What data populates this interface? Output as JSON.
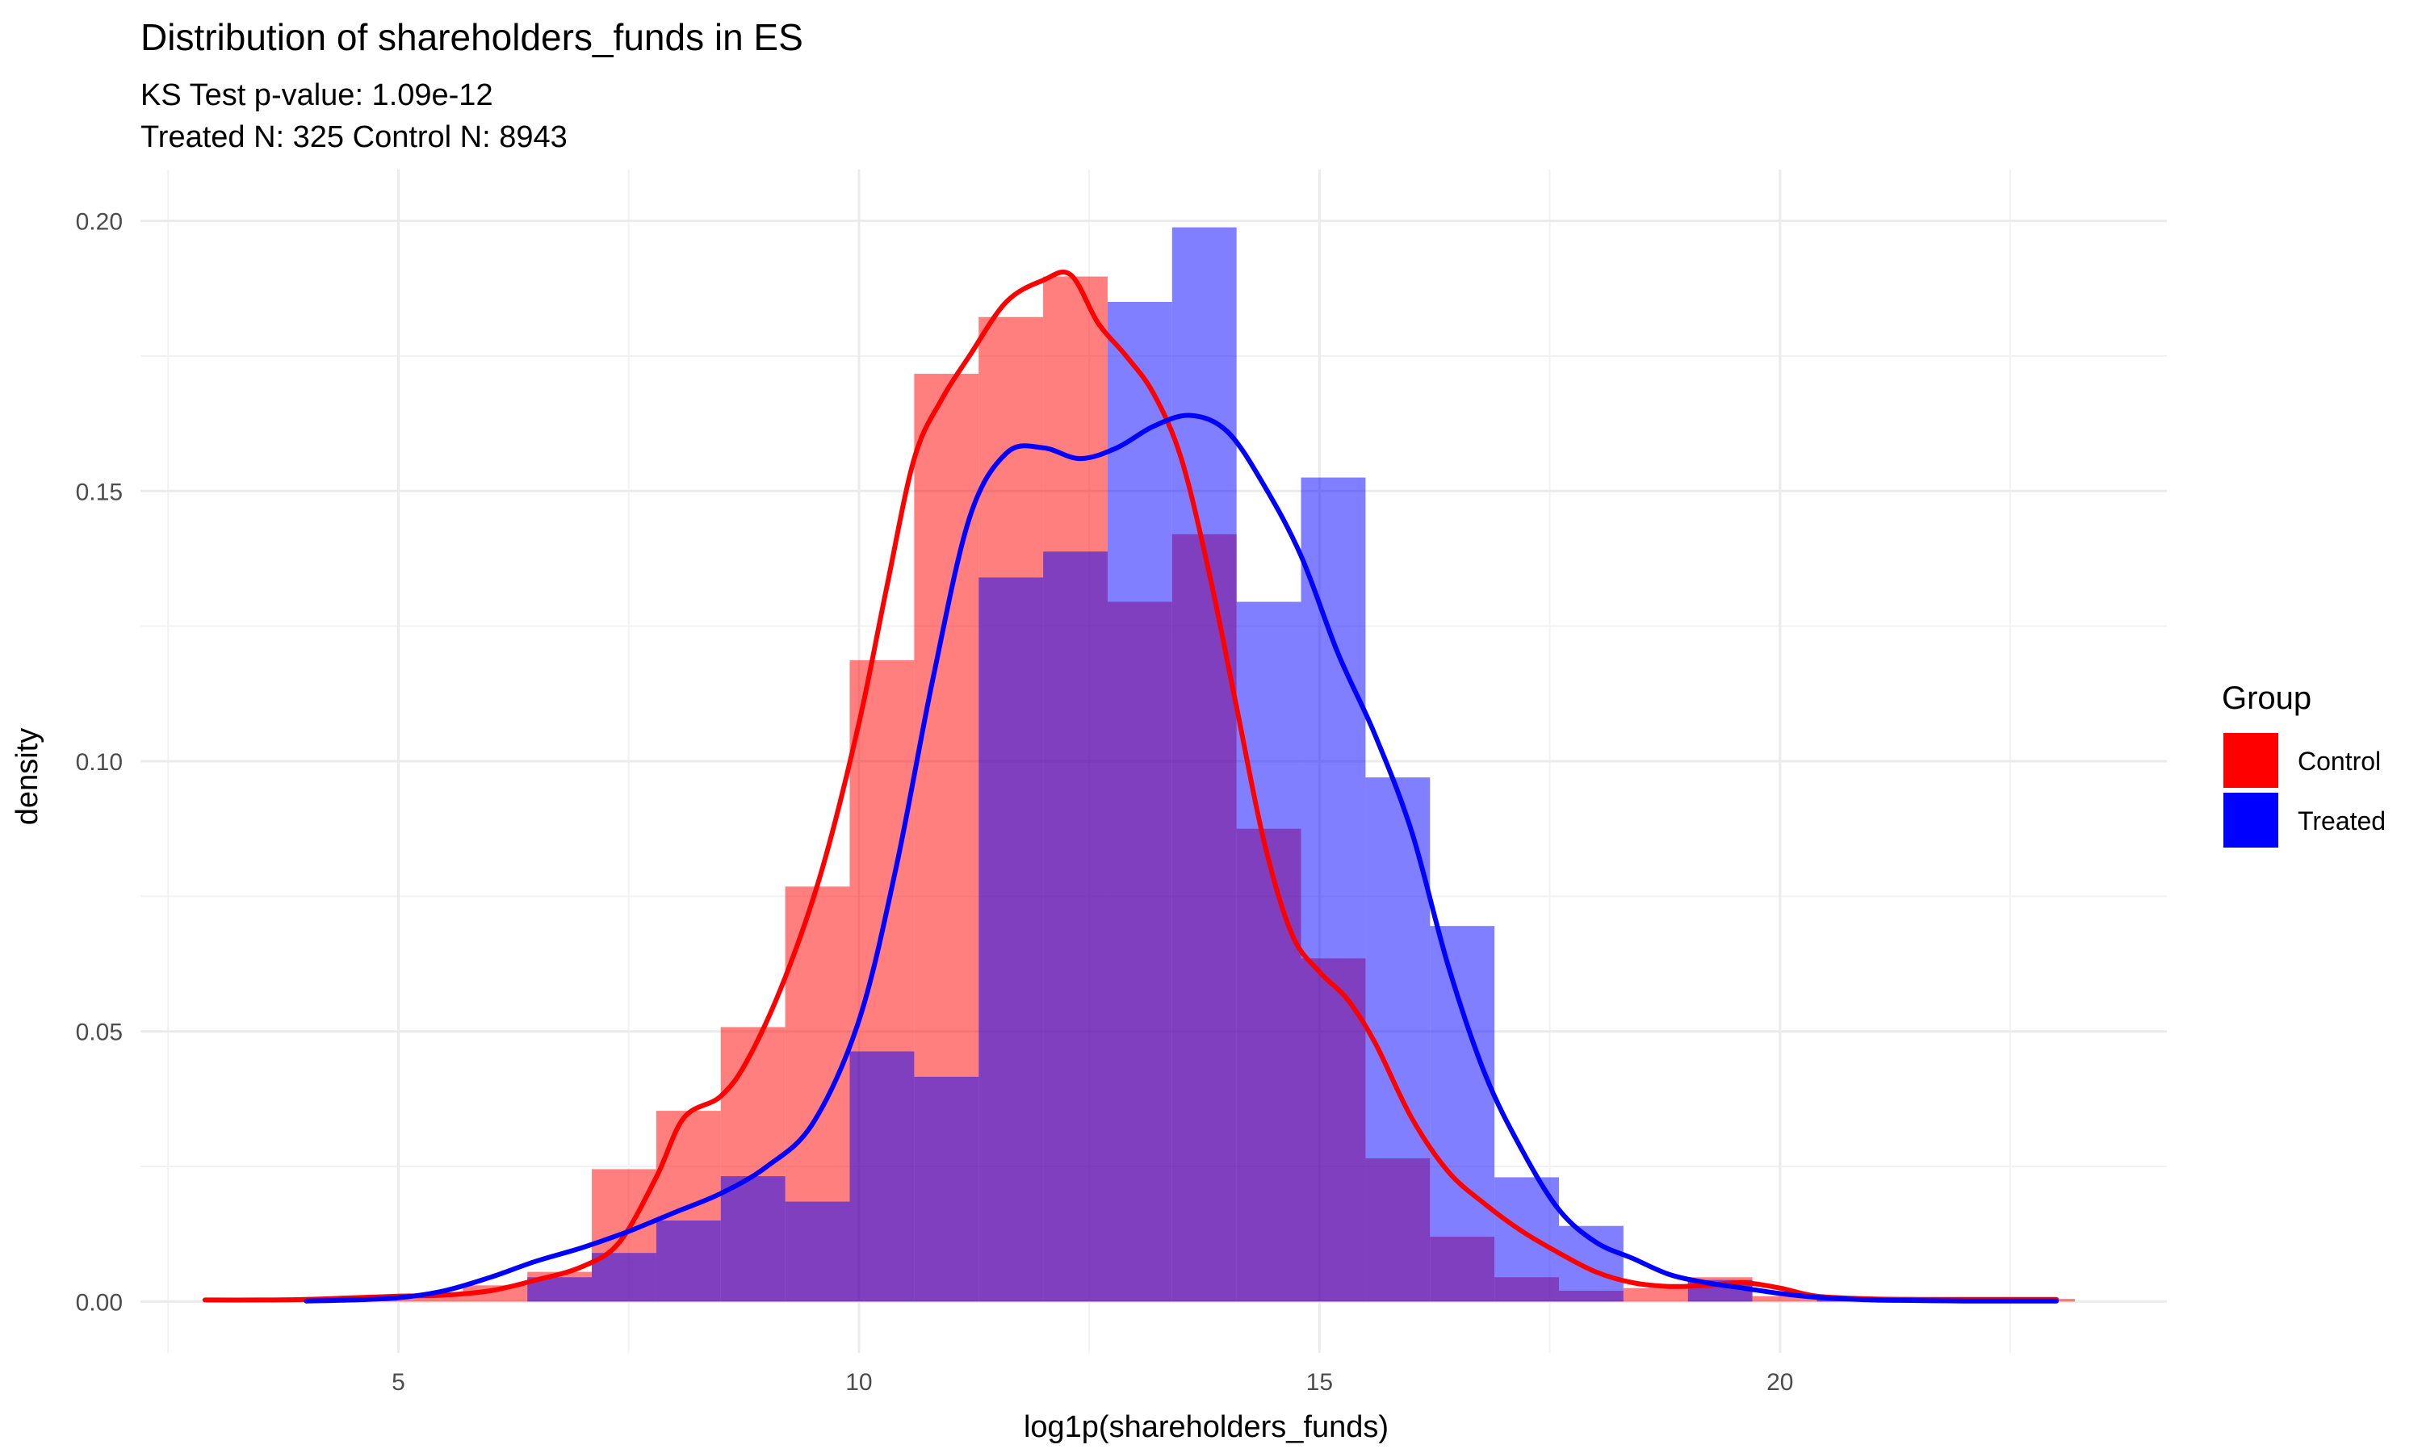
{
  "title": "Distribution of shareholders_funds in ES",
  "subtitle_line1": "KS Test p-value: 1.09e-12",
  "subtitle_line2": "Treated N: 325 Control N: 8943",
  "chart_data": {
    "type": "bar",
    "title": "Distribution of shareholders_funds in ES",
    "xlabel": "log1p(shareholders_funds)",
    "ylabel": "density",
    "xlim": [
      2.2,
      24.2
    ],
    "ylim": [
      -0.0095,
      0.2095
    ],
    "x_ticks": [
      5,
      10,
      15,
      20
    ],
    "y_ticks": [
      0.0,
      0.05,
      0.1,
      0.15,
      0.2
    ],
    "x_tick_labels": [
      "5",
      "10",
      "15",
      "20"
    ],
    "y_tick_labels": [
      "0.00",
      "0.05",
      "0.10",
      "0.15",
      "0.20"
    ],
    "grid": true,
    "legend": {
      "title": "Group",
      "position": "right"
    },
    "bins": [
      2.9,
      3.6,
      4.3,
      5.0,
      5.7,
      6.4,
      7.1,
      7.8,
      8.5,
      9.2,
      9.9,
      10.6,
      11.3,
      12.0,
      12.7,
      13.4,
      14.1,
      14.8,
      15.5,
      16.2,
      16.9,
      17.6,
      18.3,
      19.0,
      19.7,
      20.4,
      21.1,
      21.8,
      22.5,
      23.2
    ],
    "series": [
      {
        "name": "Control",
        "color": "#ff0000",
        "histogram": [
          0.0005,
          0.0005,
          0.0008,
          0.0013,
          0.003,
          0.0055,
          0.0245,
          0.0353,
          0.0508,
          0.0768,
          0.1187,
          0.1717,
          0.1822,
          0.1897,
          0.1295,
          0.142,
          0.0875,
          0.0635,
          0.0265,
          0.012,
          0.0045,
          0.002,
          0.0025,
          0.0045,
          0.001,
          0.0005,
          0.0003,
          0.0003,
          0.0005
        ],
        "density_x": [
          2.9,
          3.5,
          4.0,
          4.5,
          5.0,
          5.5,
          6.0,
          6.5,
          7.0,
          7.4,
          7.8,
          8.1,
          8.5,
          8.8,
          9.2,
          9.6,
          10.0,
          10.3,
          10.6,
          10.9,
          11.2,
          11.6,
          12.0,
          12.3,
          12.6,
          12.9,
          13.2,
          13.5,
          13.8,
          14.1,
          14.4,
          14.7,
          15.0,
          15.3,
          15.6,
          16.0,
          16.4,
          16.8,
          17.2,
          17.6,
          18.0,
          18.4,
          18.8,
          19.2,
          19.6,
          20.0,
          20.4,
          21.0,
          21.5,
          22.0,
          22.5,
          23.0
        ],
        "density_y": [
          0.0003,
          0.0003,
          0.0004,
          0.0007,
          0.001,
          0.0012,
          0.002,
          0.004,
          0.0065,
          0.011,
          0.023,
          0.034,
          0.038,
          0.045,
          0.06,
          0.08,
          0.107,
          0.132,
          0.156,
          0.167,
          0.175,
          0.185,
          0.189,
          0.19,
          0.181,
          0.175,
          0.168,
          0.156,
          0.135,
          0.11,
          0.085,
          0.068,
          0.061,
          0.056,
          0.048,
          0.034,
          0.024,
          0.018,
          0.013,
          0.009,
          0.0055,
          0.0035,
          0.0028,
          0.003,
          0.0035,
          0.0025,
          0.001,
          0.0005,
          0.0004,
          0.0004,
          0.0004,
          0.0004
        ]
      },
      {
        "name": "Treated",
        "color": "#0000ff",
        "histogram": [
          0,
          0,
          0,
          0,
          0,
          0.0045,
          0.009,
          0.015,
          0.0232,
          0.0185,
          0.0463,
          0.0416,
          0.134,
          0.1388,
          0.185,
          0.1988,
          0.1295,
          0.1525,
          0.097,
          0.0695,
          0.023,
          0.014,
          0,
          0.004,
          0,
          0.0005,
          0,
          0,
          0
        ],
        "density_x": [
          4.0,
          4.5,
          5.0,
          5.5,
          6.0,
          6.5,
          7.0,
          7.5,
          8.0,
          8.5,
          9.0,
          9.5,
          10.0,
          10.4,
          10.8,
          11.2,
          11.6,
          12.0,
          12.4,
          12.8,
          13.2,
          13.6,
          14.0,
          14.4,
          14.8,
          15.2,
          15.6,
          16.0,
          16.4,
          16.8,
          17.2,
          17.6,
          18.0,
          18.4,
          18.8,
          19.2,
          19.6,
          20.0,
          20.4,
          21.0,
          21.5,
          22.0,
          22.5,
          23.0
        ],
        "density_y": [
          0.0001,
          0.0003,
          0.0007,
          0.002,
          0.0045,
          0.0075,
          0.01,
          0.013,
          0.0165,
          0.02,
          0.025,
          0.033,
          0.052,
          0.08,
          0.115,
          0.145,
          0.157,
          0.158,
          0.156,
          0.158,
          0.162,
          0.164,
          0.161,
          0.151,
          0.138,
          0.12,
          0.105,
          0.087,
          0.062,
          0.042,
          0.028,
          0.017,
          0.011,
          0.008,
          0.005,
          0.0035,
          0.0025,
          0.0015,
          0.0008,
          0.0003,
          0.0002,
          0.0001,
          0.0001,
          0.0001
        ]
      }
    ]
  }
}
